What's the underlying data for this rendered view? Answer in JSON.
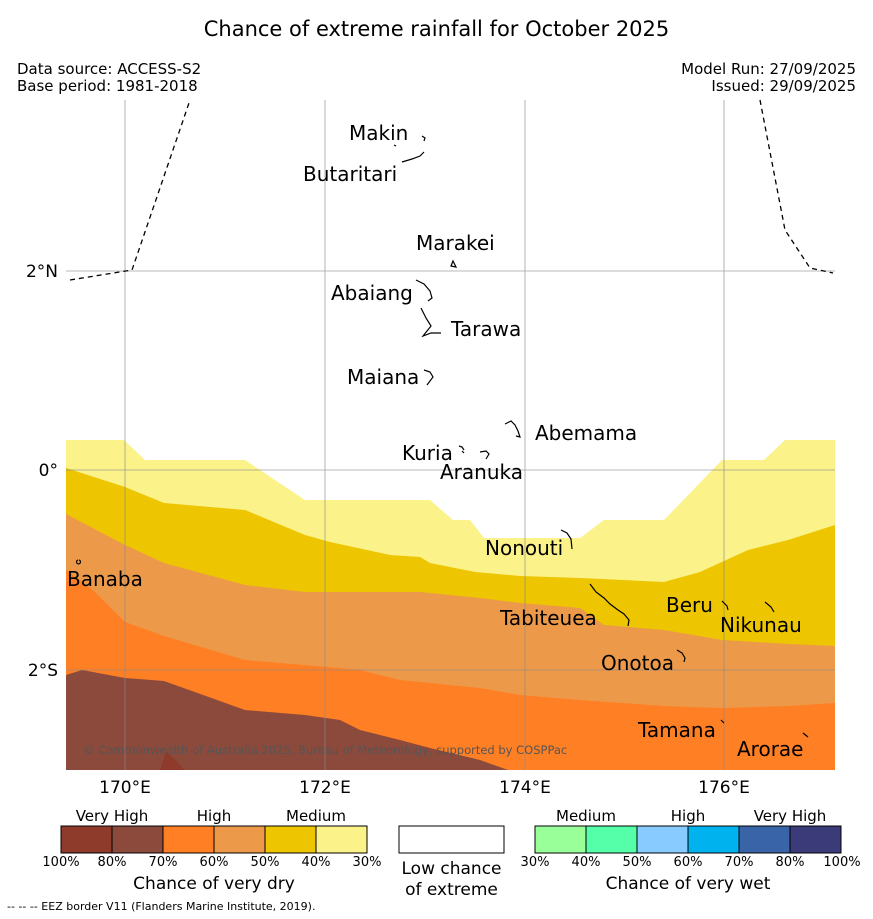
{
  "title": "Chance of extreme rainfall for October 2025",
  "meta": {
    "data_source": "Data source: ACCESS-S2",
    "base_period": "Base period: 1981-2018",
    "model_run": "Model Run: 27/09/2025",
    "issued": "Issued: 29/09/2025"
  },
  "axes": {
    "x_ticks": [
      "170°E",
      "172°E",
      "174°E",
      "176°E"
    ],
    "y_ticks": [
      "2°N",
      "0°",
      "2°S"
    ]
  },
  "places": [
    "Makin",
    "Butaritari",
    "Marakei",
    "Abaiang",
    "Tarawa",
    "Maiana",
    "Abemama",
    "Kuria",
    "Aranuka",
    "Nonouti",
    "Banaba",
    "Tabiteuea",
    "Beru",
    "Nikunau",
    "Onotoa",
    "Tamana",
    "Arorae"
  ],
  "copyright": "© Commonwealth of Australia 2025, Bureau of Meteorology, supported by COSPPac",
  "legend": {
    "dry": {
      "groups": [
        "Very High",
        "High",
        "Medium"
      ],
      "ticks": [
        "100%",
        "80%",
        "70%",
        "60%",
        "50%",
        "40%",
        "30%"
      ],
      "colors": [
        "#8f3b2b",
        "#8b4a3c",
        "#ff7f24",
        "#ec9a4a",
        "#edc500",
        "#fbf28a"
      ],
      "caption": "Chance of very dry"
    },
    "low": {
      "caption_line1": "Low chance",
      "caption_line2": "of extreme"
    },
    "wet": {
      "groups": [
        "Medium",
        "High",
        "Very High"
      ],
      "ticks": [
        "30%",
        "40%",
        "50%",
        "60%",
        "70%",
        "80%",
        "100%"
      ],
      "colors": [
        "#99ff99",
        "#55ffaa",
        "#88ccff",
        "#00b2ee",
        "#3a64a8",
        "#3b3b7a"
      ],
      "caption": "Chance of very wet"
    }
  },
  "footer": "--  --  -- EEZ border V11 (Flanders Marine Institute, 2019)."
}
